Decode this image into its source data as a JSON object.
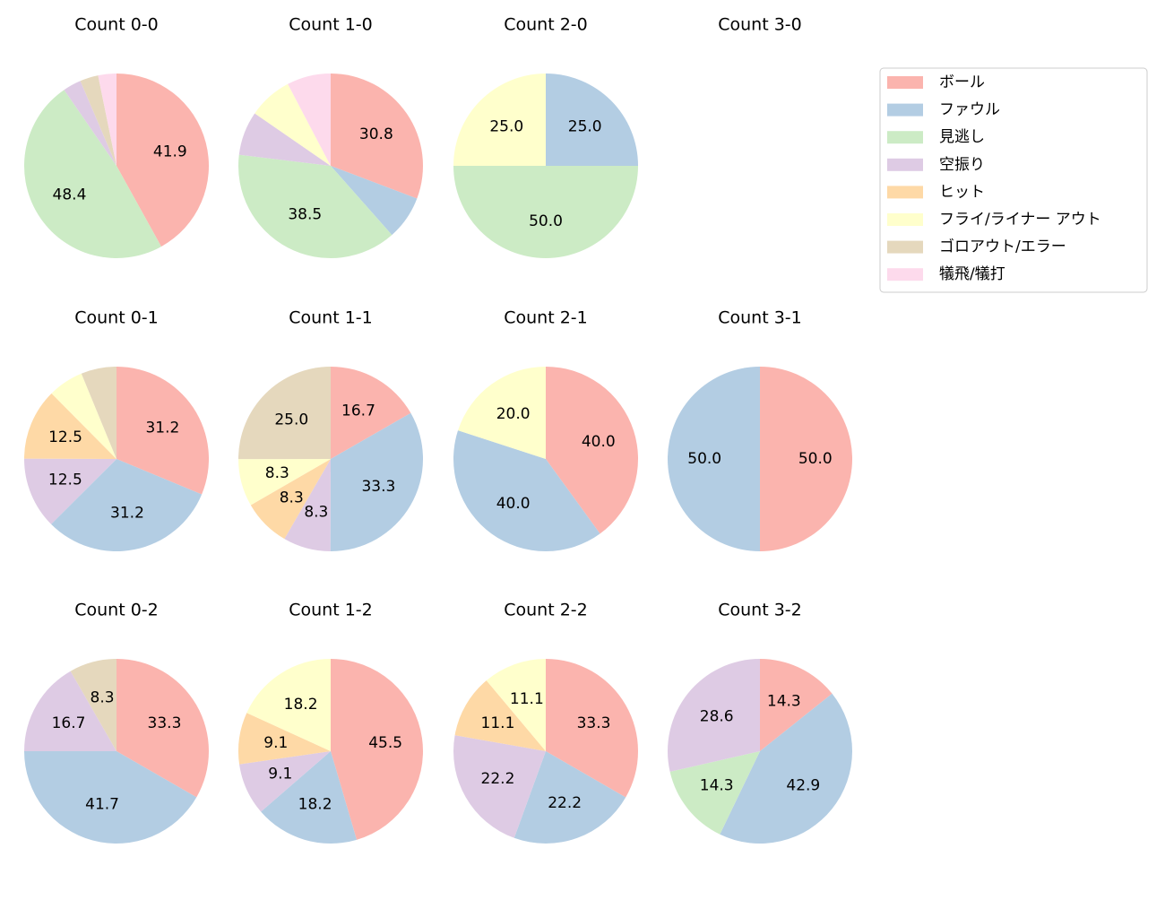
{
  "legend": {
    "labels": [
      "ボール",
      "ファウル",
      "見逃し",
      "空振り",
      "ヒット",
      "フライ/ライナー アウト",
      "ゴロアウト/エラー",
      "犠飛/犠打"
    ],
    "colors": [
      "#fbb4ae",
      "#b3cde3",
      "#ccebc5",
      "#decbe4",
      "#fed9a6",
      "#ffffcc",
      "#e5d8bd",
      "#fddaec"
    ],
    "position": "upper right"
  },
  "chart_data": [
    {
      "type": "pie",
      "title": "Count 0-0",
      "categories": [
        "ボール",
        "見逃し",
        "空振り",
        "ゴロアウト/エラー",
        "犠飛/犠打"
      ],
      "colors": [
        "#fbb4ae",
        "#ccebc5",
        "#decbe4",
        "#e5d8bd",
        "#fddaec"
      ],
      "values": [
        41.9,
        48.4,
        3.2,
        3.2,
        3.2
      ],
      "value_labels": [
        "41.9",
        "48.4",
        null,
        null,
        null
      ]
    },
    {
      "type": "pie",
      "title": "Count 1-0",
      "categories": [
        "ボール",
        "ファウル",
        "見逃し",
        "空振り",
        "フライ/ライナー アウト",
        "犠飛/犠打"
      ],
      "colors": [
        "#fbb4ae",
        "#b3cde3",
        "#ccebc5",
        "#decbe4",
        "#ffffcc",
        "#fddaec"
      ],
      "values": [
        30.8,
        7.7,
        38.5,
        7.7,
        7.7,
        7.7
      ],
      "value_labels": [
        "30.8",
        null,
        "38.5",
        null,
        null,
        null
      ]
    },
    {
      "type": "pie",
      "title": "Count 2-0",
      "categories": [
        "ファウル",
        "見逃し",
        "フライ/ライナー アウト"
      ],
      "colors": [
        "#b3cde3",
        "#ccebc5",
        "#ffffcc"
      ],
      "values": [
        25,
        50,
        25
      ],
      "value_labels": [
        "25.0",
        "50.0",
        "25.0"
      ]
    },
    {
      "type": "pie",
      "title": "Count 3-0",
      "categories": [],
      "colors": [],
      "values": [],
      "value_labels": []
    },
    {
      "type": "pie",
      "title": "Count 0-1",
      "categories": [
        "ボール",
        "ファウル",
        "空振り",
        "ヒット",
        "フライ/ライナー アウト",
        "ゴロアウト/エラー"
      ],
      "colors": [
        "#fbb4ae",
        "#b3cde3",
        "#decbe4",
        "#fed9a6",
        "#ffffcc",
        "#e5d8bd"
      ],
      "values": [
        31.2,
        31.2,
        12.5,
        12.5,
        6.2,
        6.2
      ],
      "value_labels": [
        "31.2",
        "31.2",
        "12.5",
        "12.5",
        null,
        null
      ]
    },
    {
      "type": "pie",
      "title": "Count 1-1",
      "categories": [
        "ボール",
        "ファウル",
        "空振り",
        "ヒット",
        "フライ/ライナー アウト",
        "ゴロアウト/エラー"
      ],
      "colors": [
        "#fbb4ae",
        "#b3cde3",
        "#decbe4",
        "#fed9a6",
        "#ffffcc",
        "#e5d8bd"
      ],
      "values": [
        16.7,
        33.3,
        8.3,
        8.3,
        8.3,
        25
      ],
      "value_labels": [
        "16.7",
        "33.3",
        "8.3",
        "8.3",
        "8.3",
        "25.0"
      ]
    },
    {
      "type": "pie",
      "title": "Count 2-1",
      "categories": [
        "ボール",
        "ファウル",
        "フライ/ライナー アウト"
      ],
      "colors": [
        "#fbb4ae",
        "#b3cde3",
        "#ffffcc"
      ],
      "values": [
        40,
        40,
        20
      ],
      "value_labels": [
        "40.0",
        "40.0",
        "20.0"
      ]
    },
    {
      "type": "pie",
      "title": "Count 3-1",
      "categories": [
        "ボール",
        "ファウル"
      ],
      "colors": [
        "#fbb4ae",
        "#b3cde3"
      ],
      "values": [
        50,
        50
      ],
      "value_labels": [
        "50.0",
        "50.0"
      ]
    },
    {
      "type": "pie",
      "title": "Count 0-2",
      "categories": [
        "ボール",
        "ファウル",
        "空振り",
        "ゴロアウト/エラー"
      ],
      "colors": [
        "#fbb4ae",
        "#b3cde3",
        "#decbe4",
        "#e5d8bd"
      ],
      "values": [
        33.3,
        41.7,
        16.7,
        8.3
      ],
      "value_labels": [
        "33.3",
        "41.7",
        "16.7",
        "8.3"
      ]
    },
    {
      "type": "pie",
      "title": "Count 1-2",
      "categories": [
        "ボール",
        "ファウル",
        "空振り",
        "ヒット",
        "フライ/ライナー アウト"
      ],
      "colors": [
        "#fbb4ae",
        "#b3cde3",
        "#decbe4",
        "#fed9a6",
        "#ffffcc"
      ],
      "values": [
        45.5,
        18.2,
        9.1,
        9.1,
        18.2
      ],
      "value_labels": [
        "45.5",
        "18.2",
        "9.1",
        "9.1",
        "18.2"
      ]
    },
    {
      "type": "pie",
      "title": "Count 2-2",
      "categories": [
        "ボール",
        "ファウル",
        "空振り",
        "ヒット",
        "フライ/ライナー アウト"
      ],
      "colors": [
        "#fbb4ae",
        "#b3cde3",
        "#decbe4",
        "#fed9a6",
        "#ffffcc"
      ],
      "values": [
        33.3,
        22.2,
        22.2,
        11.1,
        11.1
      ],
      "value_labels": [
        "33.3",
        "22.2",
        "22.2",
        "11.1",
        "11.1"
      ]
    },
    {
      "type": "pie",
      "title": "Count 3-2",
      "categories": [
        "ボール",
        "ファウル",
        "見逃し",
        "空振り"
      ],
      "colors": [
        "#fbb4ae",
        "#b3cde3",
        "#ccebc5",
        "#decbe4"
      ],
      "values": [
        14.3,
        42.9,
        14.3,
        28.6
      ],
      "value_labels": [
        "14.3",
        "42.9",
        "14.3",
        "28.6"
      ]
    }
  ]
}
